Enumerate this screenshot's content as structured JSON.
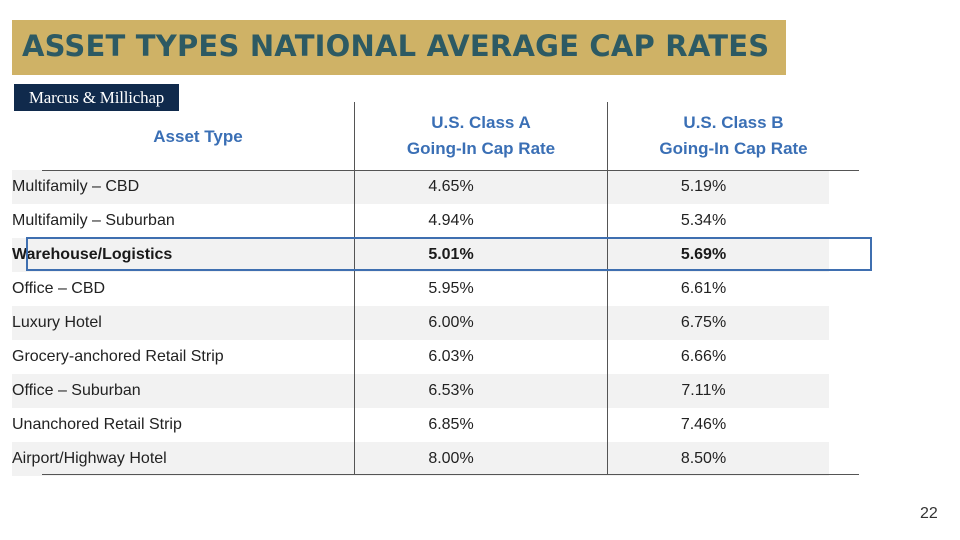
{
  "slide": {
    "title": "ASSET TYPES NATIONAL AVERAGE CAP RATES",
    "logo": "Marcus & Millichap",
    "page_number": "22"
  },
  "table": {
    "headers": {
      "asset_type": "Asset Type",
      "class_a_line1": "U.S. Class A",
      "class_a_line2": "Going-In Cap Rate",
      "class_b_line1": "U.S. Class B",
      "class_b_line2": "Going-In Cap Rate"
    },
    "rows": [
      {
        "asset": "Multifamily – CBD",
        "class_a": "4.65%",
        "class_b": "5.19%"
      },
      {
        "asset": "Multifamily – Suburban",
        "class_a": "4.94%",
        "class_b": "5.34%"
      },
      {
        "asset": "Warehouse/Logistics",
        "class_a": "5.01%",
        "class_b": "5.69%"
      },
      {
        "asset": "Office – CBD",
        "class_a": "5.95%",
        "class_b": "6.61%"
      },
      {
        "asset": "Luxury Hotel",
        "class_a": "6.00%",
        "class_b": "6.75%"
      },
      {
        "asset": "Grocery-anchored Retail Strip",
        "class_a": "6.03%",
        "class_b": "6.66%"
      },
      {
        "asset": "Office – Suburban",
        "class_a": "6.53%",
        "class_b": "7.11%"
      },
      {
        "asset": "Unanchored Retail Strip",
        "class_a": "6.85%",
        "class_b": "7.46%"
      },
      {
        "asset": "Airport/Highway Hotel",
        "class_a": "8.00%",
        "class_b": "8.50%"
      }
    ],
    "highlighted_row": "Warehouse/Logistics"
  }
}
